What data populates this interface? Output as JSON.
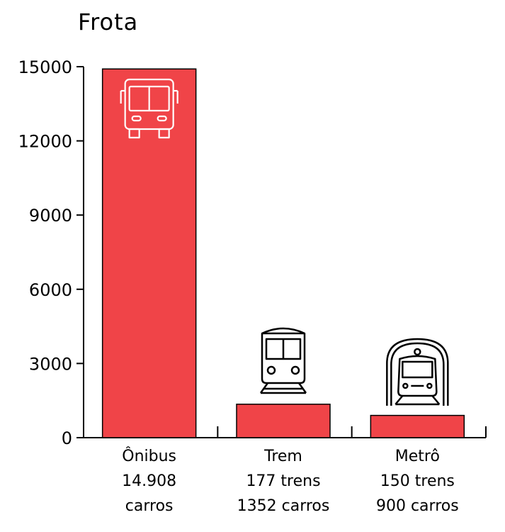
{
  "chart_data": {
    "type": "bar",
    "title": "Frota",
    "ylim": [
      0,
      15000
    ],
    "yticks": [
      "0",
      "3000",
      "6000",
      "9000",
      "12000",
      "15000"
    ],
    "ytick_values": [
      0,
      3000,
      6000,
      9000,
      12000,
      15000
    ],
    "bar_color": "#f04448",
    "grid": false,
    "categories": [
      {
        "lines": [
          "Ônibus",
          "14.908",
          "carros"
        ],
        "value": 14908,
        "icon": "bus-icon"
      },
      {
        "lines": [
          "Trem",
          "177 trens",
          "1352 carros"
        ],
        "value": 1352,
        "icon": "train-icon"
      },
      {
        "lines": [
          "Metrô",
          "150 trens",
          "900 carros"
        ],
        "value": 900,
        "icon": "metro-icon"
      }
    ]
  }
}
